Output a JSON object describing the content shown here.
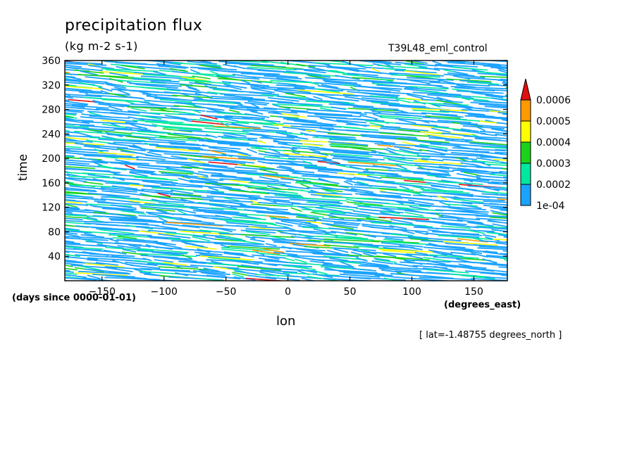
{
  "chart_data": {
    "type": "heatmap",
    "title": "precipitation flux",
    "units": "(kg m-2 s-1)",
    "experiment": "T39L48_eml_control",
    "xlabel": "lon",
    "xunits": "(degrees_east)",
    "ylabel": "time",
    "yunits": "(days since 0000-01-01)",
    "annotation": "[ lat=-1.48755 degrees_north ]",
    "xlim": [
      -180,
      177
    ],
    "ylim": [
      0,
      360
    ],
    "xticks": [
      -150,
      -100,
      -50,
      0,
      50,
      100,
      150
    ],
    "yticks": [
      40,
      80,
      120,
      160,
      200,
      240,
      280,
      320,
      360
    ],
    "colorbar": {
      "levels": [
        "1e-04",
        "0.0002",
        "0.0003",
        "0.0004",
        "0.0005",
        "0.0006"
      ],
      "colors": [
        "#1aa3ff",
        "#00e8a0",
        "#1ad21a",
        "#ffff00",
        "#ff9900",
        "#e01010"
      ],
      "extend": "max"
    },
    "pattern": "Longitude-time Hovmoller diagram of precipitation flux; narrow streaks mostly 1e-04 to 0.0003, tilted toward the west with increasing time, occasional maxima above 0.0006"
  }
}
